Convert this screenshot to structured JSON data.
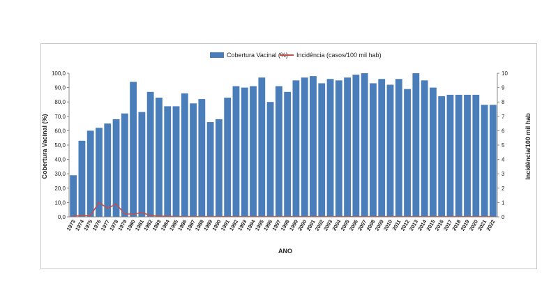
{
  "chart_data": {
    "type": "bar",
    "xlabel": "ANO",
    "ylabel": "Cobertura Vacinal (%)",
    "y2label": "Incidência/100 mil hab",
    "ylim": [
      0,
      100
    ],
    "y2lim": [
      0,
      10
    ],
    "yticks": [
      "0,0",
      "10,0",
      "20,0",
      "30,0",
      "40,0",
      "50,0",
      "60,0",
      "70,0",
      "80,0",
      "90,0",
      "100,0"
    ],
    "y2ticks": [
      "0",
      "1",
      "2",
      "3",
      "4",
      "5",
      "6",
      "7",
      "8",
      "9",
      "10"
    ],
    "grid": false,
    "legend_position": "top-center",
    "categories": [
      "1973",
      "1974",
      "1975",
      "1976",
      "1977",
      "1978",
      "1979",
      "1980",
      "1981",
      "1982",
      "1983",
      "1984",
      "1985",
      "1986",
      "1987",
      "1988",
      "1989",
      "1990",
      "1991",
      "1992",
      "1993",
      "1994",
      "1995",
      "1996",
      "1997",
      "1998",
      "1999",
      "2000",
      "2001",
      "2002",
      "2003",
      "2004",
      "2005",
      "2006",
      "2007",
      "2008",
      "2009",
      "2010",
      "2011",
      "2012",
      "2013",
      "2014",
      "2015",
      "2016",
      "2017",
      "2018",
      "2019",
      "2020",
      "2021",
      "2022"
    ],
    "series": [
      {
        "name": "Cobertura Vacinal (%)",
        "type": "bar",
        "axis": "left",
        "color": "#4a7ebb",
        "values": [
          29,
          53,
          60,
          62,
          65,
          68,
          72,
          94,
          73,
          87,
          83,
          77,
          77,
          86,
          79,
          82,
          66,
          68,
          83,
          91,
          90,
          91,
          97,
          80,
          91,
          87,
          95,
          97,
          98,
          93,
          96,
          95,
          97,
          99,
          100,
          93,
          96,
          92,
          96,
          89,
          100,
          95,
          90,
          84,
          85,
          85,
          85,
          85,
          78,
          78
        ]
      },
      {
        "name": "Incidência (casos/100 mil hab)",
        "type": "line",
        "axis": "right",
        "color": "#c0504d",
        "values": [
          0.05,
          0.1,
          0.1,
          1.0,
          0.6,
          0.9,
          0.2,
          0.2,
          0.3,
          0.1,
          0.05,
          0.05,
          0.02,
          0.02,
          0.02,
          0.02,
          0.02,
          0.02,
          0.02,
          0.02,
          0.02,
          0.02,
          0.02,
          0.02,
          0.02,
          0.02,
          0.02,
          0.02,
          0.02,
          0.02,
          0.02,
          0.02,
          0.02,
          0.02,
          0.02,
          0.02,
          0.02,
          0.02,
          0.02,
          0.02,
          0.02,
          0.02,
          0.02,
          0.02,
          0.02,
          0.02,
          0.02,
          0.02,
          0.02,
          0.02
        ]
      }
    ]
  }
}
